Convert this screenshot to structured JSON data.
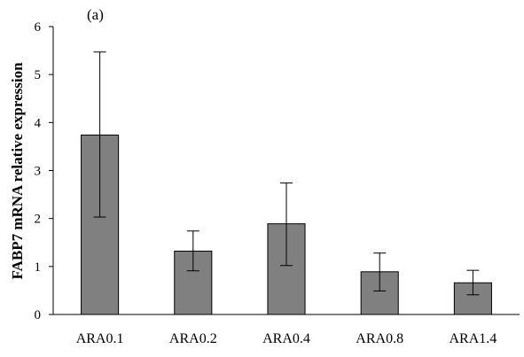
{
  "panel_label": "(a)",
  "chart_data": {
    "type": "bar",
    "title": "",
    "xlabel": "",
    "ylabel": "FABP7 mRNA relative expression",
    "ylim": [
      0,
      6
    ],
    "yticks": [
      "0",
      "1",
      "2",
      "3",
      "4",
      "5",
      "6"
    ],
    "categories": [
      "ARA0.1",
      "ARA0.2",
      "ARA0.4",
      "ARA0.8",
      "ARA1.4"
    ],
    "values": [
      3.74,
      1.32,
      1.89,
      0.89,
      0.66
    ],
    "error_low": [
      2.03,
      0.91,
      1.02,
      0.49,
      0.41
    ],
    "error_high": [
      5.47,
      1.74,
      2.74,
      1.28,
      0.92
    ],
    "grid": false,
    "legend": "none",
    "bar_color": "#808080",
    "bar_edge_color": "#000000"
  }
}
